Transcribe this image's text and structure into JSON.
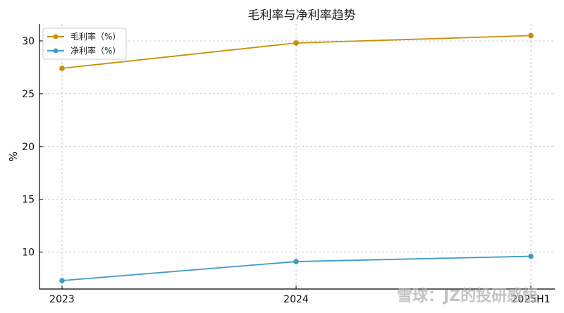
{
  "chart_data": {
    "type": "line",
    "title": "毛利率与净利率趋势",
    "xlabel": "",
    "ylabel": "%",
    "categories": [
      "2023",
      "2024",
      "2025H1"
    ],
    "series": [
      {
        "name": "毛利率（%）",
        "values": [
          27.4,
          29.8,
          30.5
        ],
        "color": "#C8900A"
      },
      {
        "name": "净利率（%）",
        "values": [
          7.3,
          9.1,
          9.6
        ],
        "color": "#3E9BC9"
      }
    ],
    "ylim": [
      6.5,
      31.6
    ],
    "yticks": [
      10,
      15,
      20,
      25,
      30
    ],
    "grid": true,
    "legend_position": "top-left"
  },
  "watermark": {
    "text": "雪球：JZ的投研感悟"
  }
}
